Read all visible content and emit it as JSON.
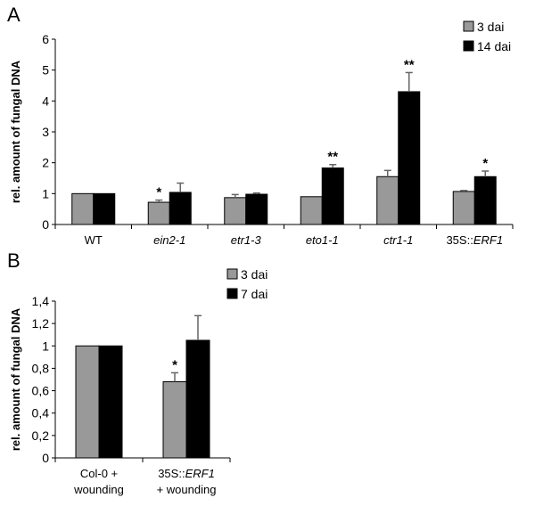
{
  "chart_data": [
    {
      "panel": "A",
      "type": "bar",
      "ylabel": "rel. amount of fungal DNA",
      "ylim": [
        0,
        6
      ],
      "yticks": [
        "0",
        "1",
        "2",
        "3",
        "4",
        "5",
        "6"
      ],
      "categories": [
        {
          "plain": "WT",
          "italic": ""
        },
        {
          "plain": "",
          "italic": "ein2-1"
        },
        {
          "plain": "",
          "italic": "etr1-3"
        },
        {
          "plain": "",
          "italic": "eto1-1"
        },
        {
          "plain": "",
          "italic": "ctr1-1"
        },
        {
          "plain": "35S::",
          "italic": "ERF1"
        }
      ],
      "series": [
        {
          "name": "3 dai",
          "color": "#999999",
          "values": [
            1.0,
            0.72,
            0.87,
            0.9,
            1.55,
            1.07
          ],
          "errors": [
            0,
            0.07,
            0.1,
            0,
            0.2,
            0.03
          ],
          "significance": [
            "",
            "*",
            "",
            "",
            "",
            ""
          ]
        },
        {
          "name": "14 dai",
          "color": "#000000",
          "values": [
            1.0,
            1.04,
            0.98,
            1.83,
            4.3,
            1.55
          ],
          "errors": [
            0,
            0.3,
            0.04,
            0.11,
            0.62,
            0.18
          ],
          "significance": [
            "",
            "",
            "",
            "**",
            "**",
            "*"
          ]
        }
      ],
      "legend": "top-right"
    },
    {
      "panel": "B",
      "type": "bar",
      "ylabel": "rel. amount of fungal DNA",
      "ylim": [
        0,
        1.4
      ],
      "yticks": [
        "0",
        "0,2",
        "0,4",
        "0,6",
        "0,8",
        "1",
        "1,2",
        "1,4"
      ],
      "categories": [
        {
          "line1_plain": "Col-0 +",
          "line1_italic": "",
          "line2": "wounding"
        },
        {
          "line1_plain": "35S::",
          "line1_italic": "ERF1",
          "line2": "+ wounding"
        }
      ],
      "series": [
        {
          "name": "3 dai",
          "color": "#999999",
          "values": [
            1.0,
            0.68
          ],
          "errors": [
            0,
            0.08
          ],
          "significance": [
            "",
            "*"
          ]
        },
        {
          "name": "7 dai",
          "color": "#000000",
          "values": [
            1.0,
            1.05
          ],
          "errors": [
            0,
            0.22
          ],
          "significance": [
            "",
            ""
          ]
        }
      ],
      "legend": "top-right"
    }
  ]
}
